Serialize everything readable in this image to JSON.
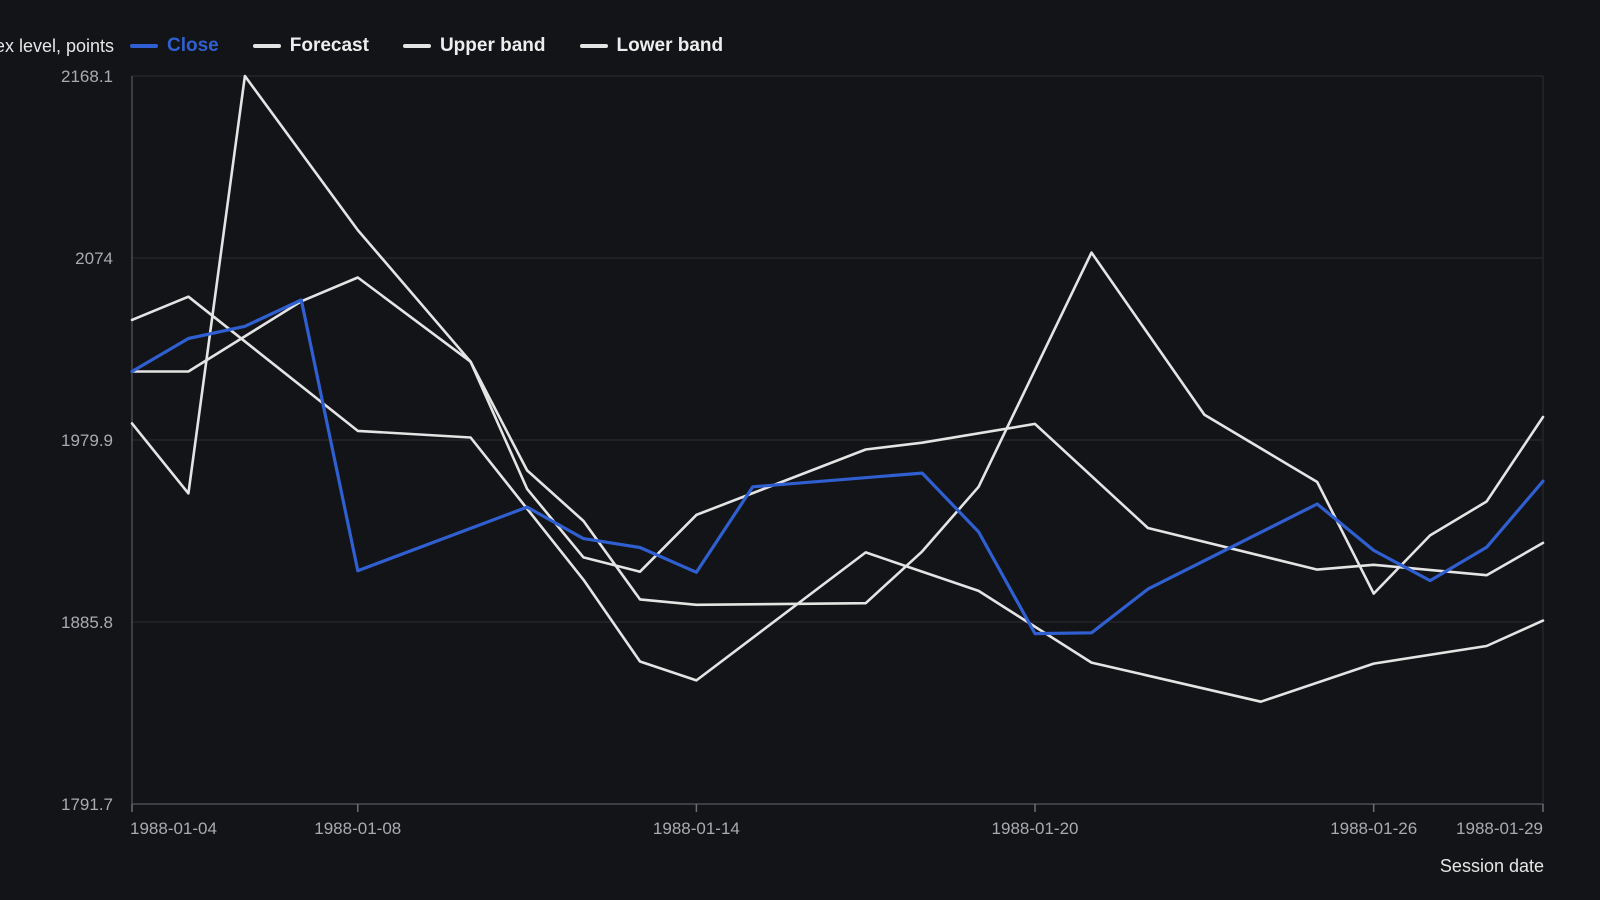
{
  "chart_data": {
    "type": "line",
    "ylabel": "Index level, points",
    "xlabel": "Session date",
    "ylim": [
      1791.7,
      2168.1
    ],
    "yticks": [
      "2168.1",
      "2074",
      "1979.9",
      "1885.8",
      "1791.7"
    ],
    "xticks": [
      "1988-01-04",
      "1988-01-08",
      "1988-01-14",
      "1988-01-20",
      "1988-01-26",
      "1988-01-29"
    ],
    "grid": "horizontal",
    "legend": "top-left",
    "series": [
      {
        "name": "Close",
        "color": "#2f5fd0",
        "x": [
          "1988-01-04",
          "1988-01-05",
          "1988-01-06",
          "1988-01-07",
          "1988-01-08",
          "1988-01-11",
          "1988-01-12",
          "1988-01-13",
          "1988-01-14",
          "1988-01-15",
          "1988-01-18",
          "1988-01-19",
          "1988-01-20",
          "1988-01-21",
          "1988-01-22",
          "1988-01-25",
          "1988-01-26",
          "1988-01-27",
          "1988-01-28",
          "1988-01-29"
        ],
        "values": [
          2015.3,
          2032.4,
          2038.7,
          2052.3,
          1912.3,
          1945.2,
          1928.9,
          1924.3,
          1911.5,
          1955.7,
          1962.8,
          1932.4,
          1879.8,
          1880.2,
          1902.8,
          1946.8,
          1922.8,
          1907.2,
          1924.4,
          1958.6
        ]
      },
      {
        "name": "Forecast",
        "color": "#e4e4e4",
        "x": [
          "1988-01-04",
          "1988-01-05",
          "1988-01-08",
          "1988-01-10",
          "1988-01-12",
          "1988-01-13",
          "1988-01-14",
          "1988-01-17",
          "1988-01-19",
          "1988-01-21",
          "1988-01-24",
          "1988-01-26",
          "1988-01-28",
          "1988-01-29"
        ],
        "values": [
          2042.0,
          2054.0,
          1984.6,
          1981.2,
          1907.6,
          1865.4,
          1855.6,
          1921.8,
          1901.9,
          1864.8,
          1844.6,
          1864.3,
          1873.4,
          1886.5
        ]
      },
      {
        "name": "Upper band",
        "color": "#e4e4e4",
        "x": [
          "1988-01-04",
          "1988-01-05",
          "1988-01-07",
          "1988-01-08",
          "1988-01-10",
          "1988-01-11",
          "1988-01-12",
          "1988-01-13",
          "1988-01-14",
          "1988-01-17",
          "1988-01-18",
          "1988-01-20",
          "1988-01-22",
          "1988-01-25",
          "1988-01-26",
          "1988-01-28",
          "1988-01-29"
        ],
        "values": [
          2015.3,
          2015.3,
          2051.6,
          2063.9,
          2020.4,
          1954.6,
          1919.2,
          1911.8,
          1941.2,
          1975.0,
          1978.5,
          1988.2,
          1934.4,
          1912.9,
          1915.4,
          1910.0,
          1926.7
        ]
      },
      {
        "name": "Lower band",
        "color": "#e4e4e4",
        "x": [
          "1988-01-04",
          "1988-01-05",
          "1988-01-06",
          "1988-01-08",
          "1988-01-10",
          "1988-01-11",
          "1988-01-12",
          "1988-01-13",
          "1988-01-14",
          "1988-01-17",
          "1988-01-18",
          "1988-01-19",
          "1988-01-21",
          "1988-01-23",
          "1988-01-25",
          "1988-01-26",
          "1988-01-27",
          "1988-01-28",
          "1988-01-29"
        ],
        "values": [
          1988.5,
          1952.3,
          2168.1,
          2088.4,
          2020.4,
          1964.2,
          1938.0,
          1897.5,
          1894.7,
          1895.5,
          1922.3,
          1955.7,
          2076.8,
          1993.0,
          1958.2,
          1900.5,
          1930.6,
          1948.1,
          1991.8
        ]
      }
    ]
  }
}
